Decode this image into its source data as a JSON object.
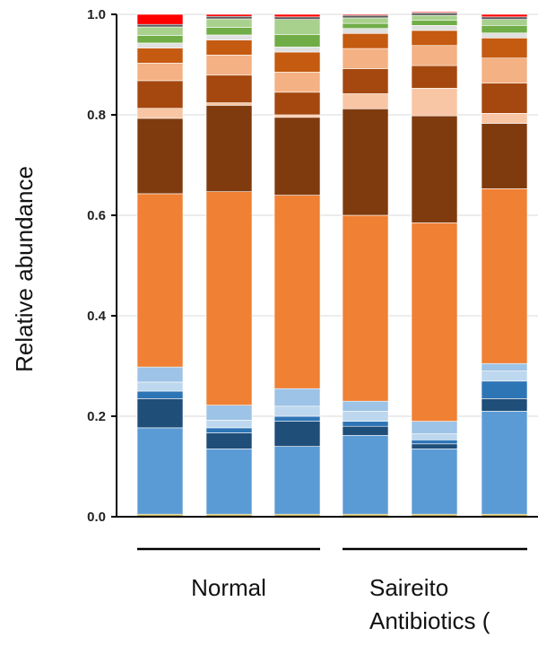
{
  "chart_data": {
    "type": "bar",
    "stacked": true,
    "ylabel": "Relative  abundance",
    "ylim": [
      0,
      1
    ],
    "yticks": [
      "0.0",
      "0.2",
      "0.4",
      "0.6",
      "0.8",
      "1.0"
    ],
    "grid": true,
    "groups": [
      {
        "label": "Normal",
        "bars": [
          0,
          1,
          2
        ]
      },
      {
        "label": "Saireito",
        "label2": "Antibiotics (",
        "bars": [
          3,
          4,
          5
        ]
      }
    ],
    "series_colors": [
      "#c9b458",
      "#5b9bd5",
      "#1f4e79",
      "#2e75b6",
      "#bdd7ee",
      "#9dc3e6",
      "#f08034",
      "#7f3b0e",
      "#f8c6a4",
      "#a5480f",
      "#f4b183",
      "#c55a11",
      "#e0e0e0",
      "#70ad47",
      "#a9d18e",
      "#595959",
      "#ff0000"
    ],
    "bars": [
      {
        "name": "",
        "values": [
          0.005,
          0.172,
          0.058,
          0.015,
          0.018,
          0.03,
          0.345,
          0.15,
          0.02,
          0.055,
          0.035,
          0.03,
          0.01,
          0.015,
          0.017,
          0.005,
          0.02
        ]
      },
      {
        "name": "",
        "values": [
          0.005,
          0.13,
          0.032,
          0.01,
          0.015,
          0.03,
          0.425,
          0.172,
          0.005,
          0.055,
          0.04,
          0.03,
          0.01,
          0.015,
          0.017,
          0.005,
          0.004
        ]
      },
      {
        "name": "",
        "values": [
          0.005,
          0.135,
          0.05,
          0.01,
          0.02,
          0.035,
          0.385,
          0.155,
          0.005,
          0.045,
          0.04,
          0.04,
          0.01,
          0.025,
          0.03,
          0.005,
          0.005
        ]
      },
      {
        "name": "",
        "values": [
          0.005,
          0.157,
          0.018,
          0.01,
          0.02,
          0.02,
          0.37,
          0.212,
          0.03,
          0.05,
          0.04,
          0.03,
          0.01,
          0.01,
          0.011,
          0.005,
          0.002
        ]
      },
      {
        "name": "",
        "values": [
          0.005,
          0.13,
          0.01,
          0.008,
          0.012,
          0.025,
          0.395,
          0.213,
          0.055,
          0.045,
          0.04,
          0.03,
          0.01,
          0.01,
          0.01,
          0.005,
          0.002
        ]
      },
      {
        "name": "",
        "values": [
          0.005,
          0.205,
          0.025,
          0.035,
          0.02,
          0.015,
          0.348,
          0.13,
          0.02,
          0.06,
          0.05,
          0.04,
          0.01,
          0.015,
          0.012,
          0.005,
          0.005
        ]
      }
    ]
  }
}
